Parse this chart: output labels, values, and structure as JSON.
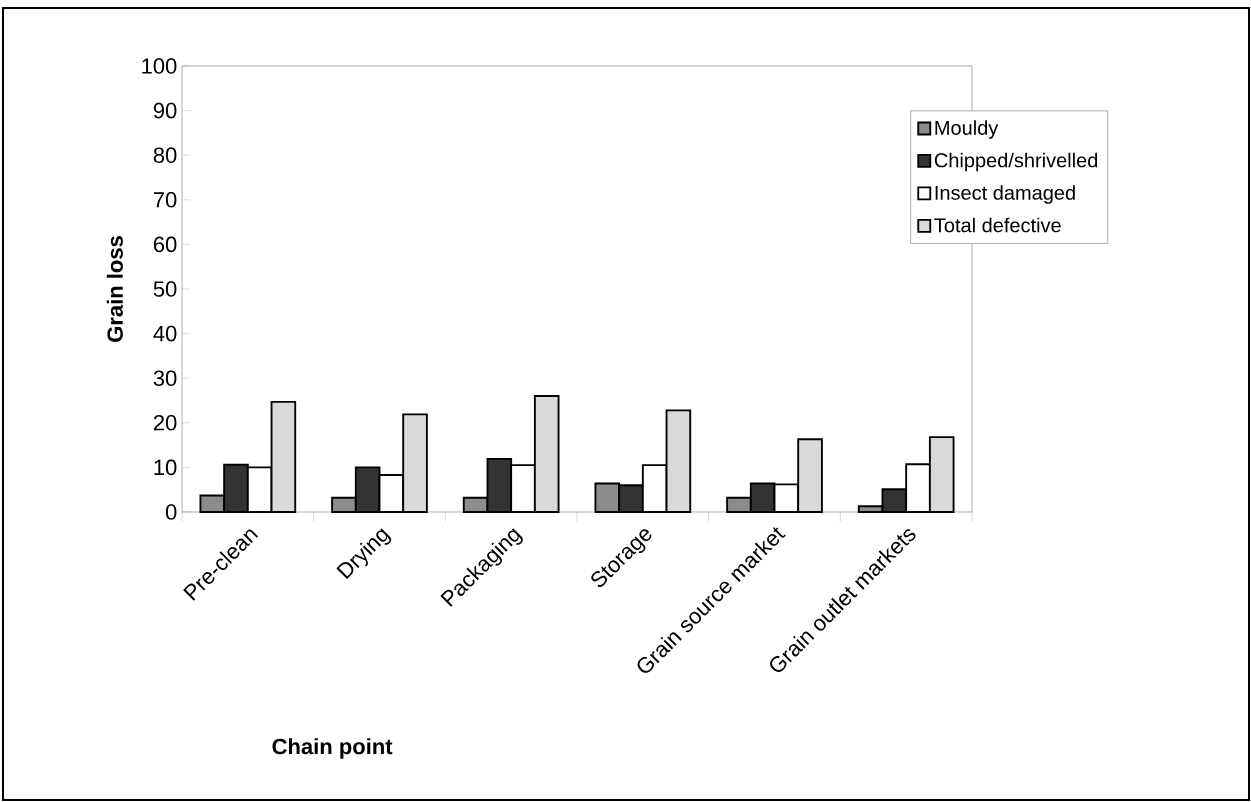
{
  "chart_data": {
    "type": "bar",
    "xlabel": "Chain point",
    "ylabel": "Grain loss",
    "categories": [
      "Pre-clean",
      "Drying",
      "Packaging",
      "Storage",
      "Grain source market",
      "Grain outlet markets"
    ],
    "series": [
      {
        "name": "Mouldy",
        "color": "#8c8c8c",
        "values": [
          3.7,
          3.2,
          3.2,
          6.4,
          3.2,
          1.3
        ]
      },
      {
        "name": "Chipped/shrivelled",
        "color": "#333333",
        "values": [
          10.6,
          10.0,
          11.9,
          6.0,
          6.4,
          5.1
        ]
      },
      {
        "name": "Insect damaged",
        "color": "#ffffff",
        "values": [
          10.0,
          8.3,
          10.5,
          10.5,
          6.2,
          10.7
        ]
      },
      {
        "name": "Total defective",
        "color": "#d9d9d9",
        "values": [
          24.7,
          21.9,
          26.0,
          22.8,
          16.3,
          16.8
        ]
      }
    ],
    "ylim": [
      0,
      100
    ],
    "yticks": [
      0,
      10,
      20,
      30,
      40,
      50,
      60,
      70,
      80,
      90,
      100
    ],
    "grid": false,
    "legend": "right"
  }
}
